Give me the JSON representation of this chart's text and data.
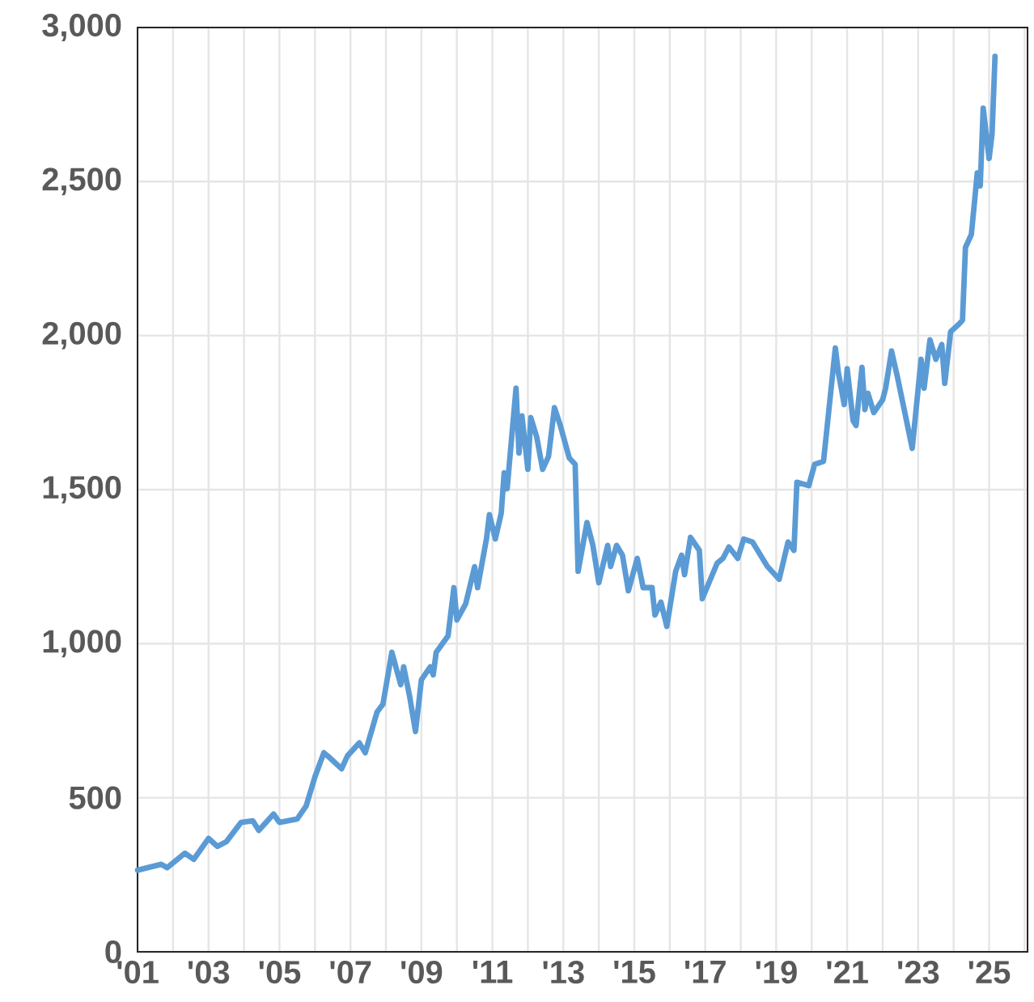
{
  "chart_data": {
    "type": "line",
    "color": "#5b9bd5",
    "grid": true,
    "x": [
      "2001-01",
      "2001-09",
      "2001-11",
      "2002-05",
      "2002-08",
      "2003-01",
      "2003-04",
      "2003-07",
      "2003-12",
      "2004-04",
      "2004-06",
      "2004-11",
      "2005-01",
      "2005-07",
      "2005-10",
      "2006-01",
      "2006-04",
      "2006-06",
      "2006-10",
      "2006-12",
      "2007-04",
      "2007-06",
      "2007-10",
      "2007-12",
      "2008-03",
      "2008-06",
      "2008-07",
      "2008-09",
      "2008-11",
      "2009-01",
      "2009-04",
      "2009-05",
      "2009-06",
      "2009-10",
      "2009-12",
      "2010-01",
      "2010-04",
      "2010-07",
      "2010-08",
      "2010-11",
      "2010-12",
      "2011-02",
      "2011-04",
      "2011-05",
      "2011-06",
      "2011-09",
      "2011-10",
      "2011-11",
      "2012-01",
      "2012-02",
      "2012-04",
      "2012-06",
      "2012-08",
      "2012-10",
      "2012-12",
      "2013-03",
      "2013-05",
      "2013-06",
      "2013-09",
      "2013-11",
      "2014-01",
      "2014-04",
      "2014-05",
      "2014-07",
      "2014-09",
      "2014-11",
      "2015-02",
      "2015-04",
      "2015-07",
      "2015-08",
      "2015-10",
      "2015-12",
      "2016-03",
      "2016-05",
      "2016-06",
      "2016-08",
      "2016-11",
      "2016-12",
      "2017-05",
      "2017-07",
      "2017-09",
      "2017-12",
      "2018-02",
      "2018-05",
      "2018-10",
      "2019-02",
      "2019-05",
      "2019-07",
      "2019-08",
      "2019-12",
      "2020-02",
      "2020-05",
      "2020-09",
      "2020-10",
      "2020-12",
      "2021-01",
      "2021-03",
      "2021-04",
      "2021-06",
      "2021-07",
      "2021-08",
      "2021-10",
      "2022-01",
      "2022-02",
      "2022-04",
      "2022-06",
      "2022-11",
      "2023-02",
      "2023-03",
      "2023-05",
      "2023-07",
      "2023-09",
      "2023-10",
      "2023-12",
      "2024-03",
      "2024-04",
      "2024-05",
      "2024-07",
      "2024-09",
      "2024-10",
      "2024-11",
      "2025-01",
      "2025-02",
      "2025-03"
    ],
    "values": [
      265,
      284,
      273,
      320,
      300,
      368,
      342,
      357,
      420,
      425,
      394,
      447,
      420,
      431,
      473,
      568,
      646,
      630,
      594,
      636,
      678,
      646,
      778,
      804,
      972,
      867,
      925,
      830,
      715,
      883,
      925,
      899,
      972,
      1025,
      1182,
      1077,
      1130,
      1250,
      1182,
      1340,
      1419,
      1340,
      1424,
      1555,
      1503,
      1829,
      1619,
      1739,
      1566,
      1734,
      1671,
      1566,
      1608,
      1766,
      1708,
      1603,
      1582,
      1235,
      1393,
      1319,
      1198,
      1319,
      1251,
      1319,
      1287,
      1172,
      1277,
      1182,
      1182,
      1093,
      1135,
      1056,
      1235,
      1287,
      1224,
      1345,
      1303,
      1146,
      1261,
      1277,
      1314,
      1277,
      1340,
      1330,
      1251,
      1209,
      1330,
      1303,
      1524,
      1513,
      1582,
      1592,
      1960,
      1881,
      1776,
      1892,
      1724,
      1708,
      1897,
      1760,
      1813,
      1750,
      1792,
      1829,
      1950,
      1866,
      1634,
      1923,
      1829,
      1986,
      1923,
      1971,
      1845,
      2013,
      2039,
      2050,
      2286,
      2328,
      2528,
      2486,
      2738,
      2575,
      2654,
      2906
    ],
    "xlim": [
      "2001-01",
      "2026-02"
    ],
    "xticks": [
      {
        "value": "2001-01",
        "label": "'01"
      },
      {
        "value": "2002-01",
        "label": null
      },
      {
        "value": "2003-01",
        "label": "'03"
      },
      {
        "value": "2004-01",
        "label": null
      },
      {
        "value": "2005-01",
        "label": "'05"
      },
      {
        "value": "2006-01",
        "label": null
      },
      {
        "value": "2007-01",
        "label": "'07"
      },
      {
        "value": "2008-01",
        "label": null
      },
      {
        "value": "2009-01",
        "label": "'09"
      },
      {
        "value": "2010-01",
        "label": null
      },
      {
        "value": "2011-01",
        "label": "'11"
      },
      {
        "value": "2012-01",
        "label": null
      },
      {
        "value": "2013-01",
        "label": "'13"
      },
      {
        "value": "2014-01",
        "label": null
      },
      {
        "value": "2015-01",
        "label": "'15"
      },
      {
        "value": "2016-01",
        "label": null
      },
      {
        "value": "2017-01",
        "label": "'17"
      },
      {
        "value": "2018-01",
        "label": null
      },
      {
        "value": "2019-01",
        "label": "'19"
      },
      {
        "value": "2020-01",
        "label": null
      },
      {
        "value": "2021-01",
        "label": "'21"
      },
      {
        "value": "2022-01",
        "label": null
      },
      {
        "value": "2023-01",
        "label": "'23"
      },
      {
        "value": "2024-01",
        "label": null
      },
      {
        "value": "2025-01",
        "label": "'25"
      },
      {
        "value": "2026-01",
        "label": null
      }
    ],
    "ylim": [
      0,
      3000
    ],
    "yticks": [
      0,
      500,
      {
        "value": 1000,
        "label": "1,000"
      },
      {
        "value": 1500,
        "label": "1,500"
      },
      {
        "value": 2000,
        "label": "2,000"
      },
      {
        "value": 2500,
        "label": "2,500"
      },
      {
        "value": 3000,
        "label": "3,000"
      }
    ]
  }
}
